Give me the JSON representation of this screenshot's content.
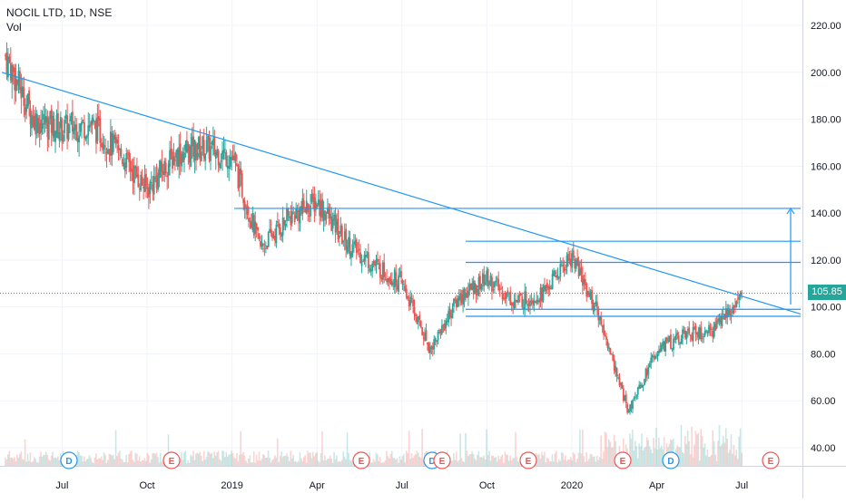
{
  "header": {
    "title": "NOCIL LTD, 1D, NSE",
    "volume_label": "Vol"
  },
  "last_price": "105.85",
  "colors": {
    "up": "#26a69a",
    "down": "#ef5350",
    "drawing": "#2196f3",
    "event_dividend": "#2196f3",
    "event_earnings": "#ef5350",
    "price_tag": "#26a69a"
  },
  "chart_data": {
    "type": "candlestick",
    "symbol": "NOCIL LTD",
    "interval": "1D",
    "exchange": "NSE",
    "ylim": [
      30,
      230
    ],
    "y_ticks": [
      "220.00",
      "200.00",
      "180.00",
      "160.00",
      "140.00",
      "120.00",
      "100.00",
      "80.00",
      "60.00",
      "40.00"
    ],
    "x_ticks": [
      "Jul",
      "Oct",
      "2019",
      "Apr",
      "Jul",
      "Oct",
      "2020",
      "Apr",
      "Jul"
    ],
    "last_price": 105.85,
    "approx_close_path": [
      {
        "t": "2018-05",
        "close": 207
      },
      {
        "t": "2018-06",
        "close": 180
      },
      {
        "t": "2018-07",
        "close": 176
      },
      {
        "t": "2018-08",
        "close": 178
      },
      {
        "t": "2018-09",
        "close": 166
      },
      {
        "t": "2018-10",
        "close": 150
      },
      {
        "t": "2018-11",
        "close": 165
      },
      {
        "t": "2018-12",
        "close": 168
      },
      {
        "t": "2019-01",
        "close": 164
      },
      {
        "t": "2019-02",
        "close": 125
      },
      {
        "t": "2019-03",
        "close": 138
      },
      {
        "t": "2019-04",
        "close": 145
      },
      {
        "t": "2019-05",
        "close": 128
      },
      {
        "t": "2019-06",
        "close": 118
      },
      {
        "t": "2019-07",
        "close": 110
      },
      {
        "t": "2019-08",
        "close": 82
      },
      {
        "t": "2019-09",
        "close": 104
      },
      {
        "t": "2019-10",
        "close": 112
      },
      {
        "t": "2019-11",
        "close": 102
      },
      {
        "t": "2019-12",
        "close": 106
      },
      {
        "t": "2020-01",
        "close": 122
      },
      {
        "t": "2020-02",
        "close": 95
      },
      {
        "t": "2020-03",
        "close": 55
      },
      {
        "t": "2020-04",
        "close": 82
      },
      {
        "t": "2020-05",
        "close": 88
      },
      {
        "t": "2020-06",
        "close": 90
      },
      {
        "t": "2020-07",
        "close": 105.85
      }
    ],
    "annotations": {
      "horizontal_levels": [
        142,
        128,
        119,
        99,
        96
      ],
      "trendline": [
        {
          "t": "2018-05",
          "price": 200
        },
        {
          "t": "2020-07",
          "price": 97
        }
      ],
      "target_arrow": {
        "from": 101,
        "to": 142
      }
    },
    "events": [
      {
        "t": "2018-07-15",
        "type": "D"
      },
      {
        "t": "2018-11-15",
        "type": "E"
      },
      {
        "t": "2019-05-10",
        "type": "E"
      },
      {
        "t": "2019-07-25",
        "type": "D"
      },
      {
        "t": "2019-08-01",
        "type": "E"
      },
      {
        "t": "2019-11-05",
        "type": "E"
      },
      {
        "t": "2020-02-10",
        "type": "E"
      },
      {
        "t": "2020-03-20",
        "type": "D"
      },
      {
        "t": "2020-07-05",
        "type": "E"
      }
    ]
  }
}
